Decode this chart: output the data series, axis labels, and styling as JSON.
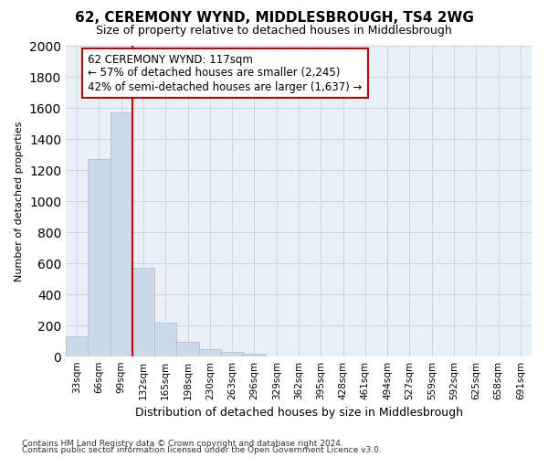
{
  "title": "62, CEREMONY WYND, MIDDLESBROUGH, TS4 2WG",
  "subtitle": "Size of property relative to detached houses in Middlesbrough",
  "xlabel": "Distribution of detached houses by size in Middlesbrough",
  "ylabel": "Number of detached properties",
  "footnote1": "Contains HM Land Registry data © Crown copyright and database right 2024.",
  "footnote2": "Contains public sector information licensed under the Open Government Licence v3.0.",
  "categories": [
    "33sqm",
    "66sqm",
    "99sqm",
    "132sqm",
    "165sqm",
    "198sqm",
    "230sqm",
    "263sqm",
    "296sqm",
    "329sqm",
    "362sqm",
    "395sqm",
    "428sqm",
    "461sqm",
    "494sqm",
    "527sqm",
    "559sqm",
    "592sqm",
    "625sqm",
    "658sqm",
    "691sqm"
  ],
  "values": [
    130,
    1270,
    1570,
    570,
    215,
    95,
    50,
    30,
    15,
    0,
    0,
    0,
    0,
    0,
    0,
    0,
    0,
    0,
    0,
    0,
    0
  ],
  "bar_color": "#ccd9e8",
  "bar_edge_color": "#aabdcc",
  "grid_color": "#c8d4e4",
  "background_color": "#eaf0f8",
  "vline_color": "#cc0000",
  "vline_position": 2.5,
  "annotation_text": "62 CEREMONY WYND: 117sqm\n← 57% of detached houses are smaller (2,245)\n42% of semi-detached houses are larger (1,637) →",
  "annotation_box_facecolor": "#ffffff",
  "annotation_box_edgecolor": "#cc0000",
  "ylim": [
    0,
    2000
  ],
  "yticks": [
    0,
    200,
    400,
    600,
    800,
    1000,
    1200,
    1400,
    1600,
    1800,
    2000
  ],
  "title_fontsize": 11,
  "subtitle_fontsize": 9,
  "ylabel_fontsize": 8,
  "xlabel_fontsize": 9,
  "tick_fontsize": 7.5,
  "footnote_fontsize": 6.5
}
